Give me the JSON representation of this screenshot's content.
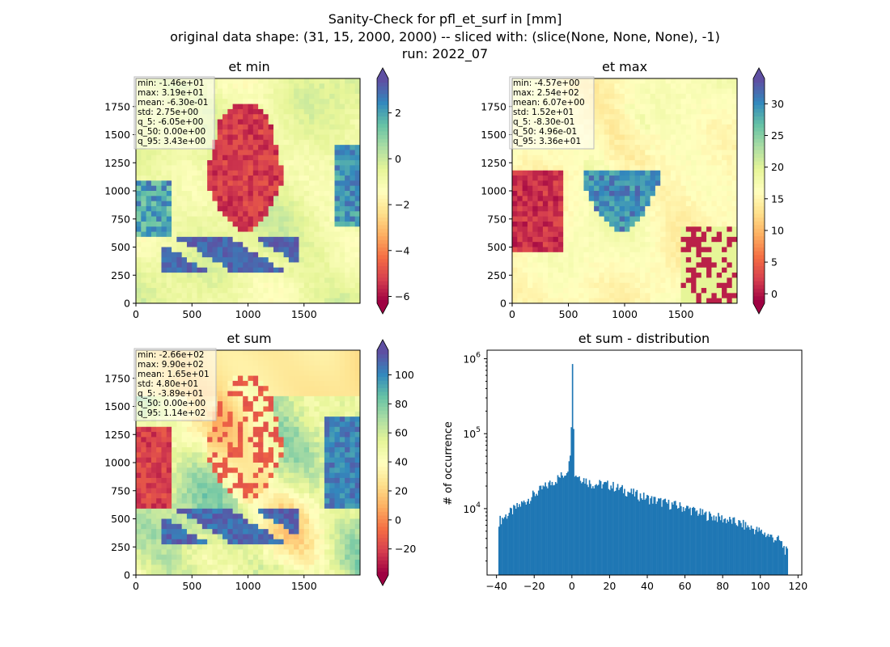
{
  "figure": {
    "suptitle_lines": [
      "Sanity-Check for pfl_et_surf in [mm]",
      "original data shape: (31, 15, 2000, 2000) -- sliced with: (slice(None, None, None), -1)",
      "run: 2022_07"
    ]
  },
  "chart_data": [
    {
      "type": "heatmap",
      "title": "et min",
      "xlim": [
        0,
        2000
      ],
      "ylim": [
        0,
        2000
      ],
      "xticks": [
        0,
        500,
        1000,
        1500
      ],
      "yticks": [
        0,
        250,
        500,
        750,
        1000,
        1250,
        1500,
        1750
      ],
      "colormap": "Spectral",
      "colorbar": {
        "range": [
          -6.3,
          3.5
        ],
        "ticks": [
          -6,
          -4,
          -2,
          0,
          2
        ],
        "tick_labels": [
          "−6",
          "−4",
          "−2",
          "0",
          "2"
        ],
        "extend": "both"
      },
      "stats": [
        "min: -1.46e+01",
        "max: 3.19e+01",
        "mean: -6.30e-01",
        "std: 2.75e+00",
        "q_5: -6.05e+00",
        "q_50: 0.00e+00",
        "q_95: 3.43e+00"
      ]
    },
    {
      "type": "heatmap",
      "title": "et max",
      "xlim": [
        0,
        2000
      ],
      "ylim": [
        0,
        2000
      ],
      "xticks": [
        0,
        500,
        1000,
        1500
      ],
      "yticks": [
        0,
        250,
        500,
        750,
        1000,
        1250,
        1500,
        1750
      ],
      "colormap": "Spectral",
      "colorbar": {
        "range": [
          -1.5,
          34
        ],
        "ticks": [
          0,
          5,
          10,
          15,
          20,
          25,
          30
        ],
        "tick_labels": [
          "0",
          "5",
          "10",
          "15",
          "20",
          "25",
          "30"
        ],
        "extend": "both"
      },
      "stats": [
        "min: -4.57e+00",
        "max: 2.54e+02",
        "mean: 6.07e+00",
        "std: 1.52e+01",
        "q_5: -8.30e-01",
        "q_50: 4.96e-01",
        "q_95: 3.36e+01"
      ]
    },
    {
      "type": "heatmap",
      "title": "et sum",
      "xlim": [
        0,
        2000
      ],
      "ylim": [
        0,
        2000
      ],
      "xticks": [
        0,
        500,
        1000,
        1500
      ],
      "yticks": [
        0,
        250,
        500,
        750,
        1000,
        1250,
        1500,
        1750
      ],
      "colormap": "Spectral",
      "colorbar": {
        "range": [
          -38,
          117
        ],
        "ticks": [
          -20,
          0,
          20,
          40,
          60,
          80,
          100
        ],
        "tick_labels": [
          "−20",
          "0",
          "20",
          "40",
          "60",
          "80",
          "100"
        ],
        "extend": "both"
      },
      "stats": [
        "min: -2.66e+02",
        "max: 9.90e+02",
        "mean: 1.65e+01",
        "std: 4.80e+01",
        "q_5: -3.89e+01",
        "q_50: 0.00e+00",
        "q_95: 1.14e+02"
      ]
    },
    {
      "type": "bar",
      "title": "et sum - distribution",
      "xlabel": "",
      "ylabel": "# of occurrence",
      "xlim": [
        -45,
        122
      ],
      "ylim": [
        1300,
        1300000
      ],
      "yscale": "log",
      "xticks": [
        -40,
        -20,
        0,
        20,
        40,
        60,
        80,
        100,
        120
      ],
      "xtick_labels": [
        "−40",
        "−20",
        "0",
        "20",
        "40",
        "60",
        "80",
        "100",
        "120"
      ],
      "yticks": [
        10000,
        100000,
        1000000
      ],
      "ytick_labels": [
        "10^4",
        "10^5",
        "10^6"
      ],
      "color": "#1f77b4",
      "x": [
        -39,
        -20,
        -12,
        -4,
        -1,
        0,
        1,
        10,
        20,
        30,
        40,
        50,
        60,
        70,
        80,
        90,
        100,
        110,
        114
      ],
      "y": [
        7000,
        16000,
        22000,
        30000,
        44000,
        850000,
        30000,
        22000,
        21000,
        17000,
        14000,
        12000,
        10500,
        8500,
        7500,
        6300,
        5000,
        3800,
        2600
      ]
    }
  ]
}
